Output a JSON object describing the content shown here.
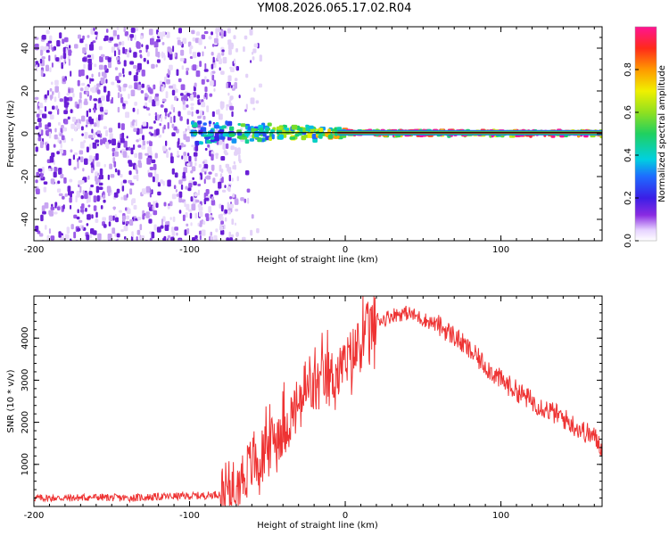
{
  "figure_title": "YM08.2026.065.17.02.R04",
  "chart_data": [
    {
      "type": "heatmap",
      "name": "spectrogram",
      "xlabel": "Height of straight line (km)",
      "ylabel": "Frequency (Hz)",
      "xlim": [
        -200,
        165
      ],
      "ylim": [
        -50,
        50
      ],
      "xticks": [
        -200,
        -100,
        0,
        100
      ],
      "yticks": [
        -40,
        -20,
        0,
        20,
        40
      ],
      "xtick_labels": [
        "-200",
        "-100",
        "0",
        "100"
      ],
      "ytick_labels": [
        "-40",
        "-20",
        "0",
        "20",
        "40"
      ],
      "noise_region_x": [
        -200,
        -70
      ],
      "signal_line": {
        "x": [
          -100,
          165
        ],
        "frequency_hz": 0.5
      },
      "signal_spread_bands": [
        {
          "x": [
            -100,
            -75
          ],
          "half_width_hz": 5,
          "amplitude": 0.35
        },
        {
          "x": [
            -75,
            -50
          ],
          "half_width_hz": 4,
          "amplitude": 0.45
        },
        {
          "x": [
            -50,
            -20
          ],
          "half_width_hz": 3,
          "amplitude": 0.55
        },
        {
          "x": [
            -20,
            0
          ],
          "half_width_hz": 2,
          "amplitude": 0.65
        },
        {
          "x": [
            0,
            165
          ],
          "half_width_hz": 1,
          "amplitude": 0.9
        }
      ],
      "colorbar": {
        "label": "Normalized spectral amplitude",
        "range": [
          0,
          1
        ],
        "ticks": [
          0.0,
          0.2,
          0.4,
          0.6,
          0.8
        ],
        "tick_labels": [
          "0.0",
          "0.2",
          "0.4",
          "0.6",
          "0.8"
        ]
      }
    },
    {
      "type": "line",
      "name": "snr",
      "xlabel": "Height of straight line (km)",
      "ylabel": "SNR (10 * v/v)",
      "xlim": [
        -200,
        165
      ],
      "ylim": [
        0,
        5000
      ],
      "xticks": [
        -200,
        -100,
        0,
        100
      ],
      "yticks": [
        1000,
        2000,
        3000,
        4000
      ],
      "xtick_labels": [
        "-200",
        "-100",
        "0",
        "100"
      ],
      "ytick_labels": [
        "1000",
        "2000",
        "3000",
        "4000"
      ],
      "color": "#ee3333",
      "series": [
        {
          "name": "SNR",
          "x": [
            -200,
            -180,
            -160,
            -140,
            -120,
            -100,
            -90,
            -80,
            -75,
            -70,
            -65,
            -60,
            -55,
            -50,
            -45,
            -40,
            -35,
            -30,
            -25,
            -20,
            -15,
            -10,
            -5,
            0,
            5,
            10,
            15,
            20,
            25,
            30,
            40,
            50,
            60,
            70,
            80,
            90,
            100,
            110,
            120,
            130,
            140,
            150,
            160,
            165
          ],
          "y": [
            200,
            200,
            220,
            200,
            230,
            250,
            260,
            300,
            380,
            550,
            750,
            1000,
            1150,
            1300,
            1650,
            1900,
            2100,
            2450,
            2700,
            2800,
            2950,
            3050,
            3150,
            3350,
            3600,
            3900,
            4200,
            4450,
            4450,
            4550,
            4600,
            4450,
            4300,
            4050,
            3700,
            3350,
            3000,
            2750,
            2500,
            2300,
            2100,
            1850,
            1650,
            1400
          ]
        }
      ]
    }
  ]
}
